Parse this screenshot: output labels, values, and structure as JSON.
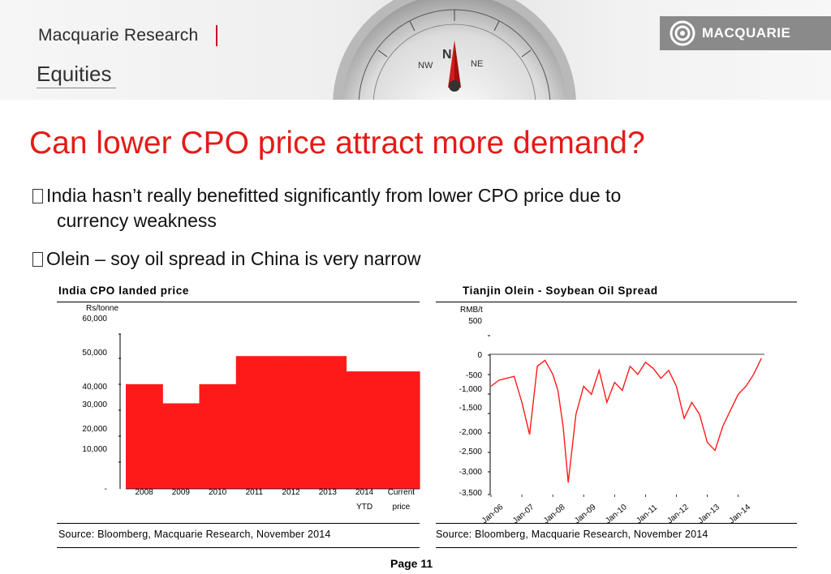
{
  "header": {
    "brand": "Macquarie Research",
    "division": "Equities",
    "logo_text": "MACQUARIE"
  },
  "slide": {
    "title": "Can lower CPO price attract more demand?",
    "bullets": [
      {
        "line1": "India hasn’t really benefitted significantly from lower CPO price due to",
        "line2": "currency weakness"
      },
      {
        "line1": "Olein – soy oil spread in China is very narrow"
      }
    ],
    "page": "Page 11"
  },
  "left_panel": {
    "title": "India CPO landed price",
    "source": "Source: Bloomberg, Macquarie Research, November 2014"
  },
  "right_panel": {
    "title": "Tianjin Olein - Soybean Oil Spread",
    "source": "Source: Bloomberg, Macquarie Research, November 2014"
  },
  "chart_data": [
    {
      "type": "bar",
      "title": "India CPO landed price",
      "ylabel": "Rs/tonne",
      "color": "#ff1a1a",
      "y_tick_labels": [
        "60,000",
        "50,000",
        "40,000",
        "30,000",
        "20,000",
        "10,000",
        "-"
      ],
      "categories": [
        "2008",
        "2009",
        "2010",
        "2011",
        "2012",
        "2013",
        "2014 YTD",
        "Current price"
      ],
      "category_label_lines": [
        [
          "2008"
        ],
        [
          "2009"
        ],
        [
          "2010"
        ],
        [
          "2011"
        ],
        [
          "2012"
        ],
        [
          "2013"
        ],
        [
          "2014",
          "YTD"
        ],
        [
          "Current",
          "price"
        ]
      ],
      "values": [
        41000,
        33500,
        41000,
        52000,
        52000,
        52000,
        46000,
        46000
      ],
      "ylim": [
        0,
        60000
      ],
      "grid": false
    },
    {
      "type": "line",
      "title": "Tianjin Olein - Soybean Oil Spread",
      "ylabel": "RMB/t",
      "color": "#ff1a1a",
      "y_tick_labels": [
        "500",
        "0",
        "-500",
        "-1,000",
        "-1,500",
        "-2,000",
        "-2,500",
        "-3,000",
        "-3,500"
      ],
      "x_tick_labels": [
        "Jan-06",
        "Jan-07",
        "Jan-08",
        "Jan-09",
        "Jan-10",
        "Jan-11",
        "Jan-12",
        "Jan-13",
        "Jan-14"
      ],
      "ylim": [
        -3500,
        500
      ],
      "grid": false,
      "series": [
        {
          "x": [
            "2006-01",
            "2006-04",
            "2006-07",
            "2006-10",
            "2007-01",
            "2007-04",
            "2007-07",
            "2007-10",
            "2008-01",
            "2008-03",
            "2008-05",
            "2008-07",
            "2008-10",
            "2009-01",
            "2009-04",
            "2009-07",
            "2009-10",
            "2010-01",
            "2010-04",
            "2010-07",
            "2010-10",
            "2011-01",
            "2011-04",
            "2011-07",
            "2011-10",
            "2012-01",
            "2012-04",
            "2012-07",
            "2012-10",
            "2013-01",
            "2013-04",
            "2013-07",
            "2013-10",
            "2014-01",
            "2014-04",
            "2014-07",
            "2014-10"
          ],
          "values": [
            -800,
            -650,
            -600,
            -550,
            -1200,
            -2000,
            -300,
            -150,
            -500,
            -900,
            -1800,
            -3200,
            -1500,
            -800,
            -1000,
            -400,
            -1200,
            -700,
            -900,
            -300,
            -500,
            -200,
            -350,
            -600,
            -400,
            -800,
            -1600,
            -1200,
            -1500,
            -2200,
            -2400,
            -1800,
            -1400,
            -1000,
            -800,
            -500,
            -100
          ]
        }
      ]
    }
  ]
}
